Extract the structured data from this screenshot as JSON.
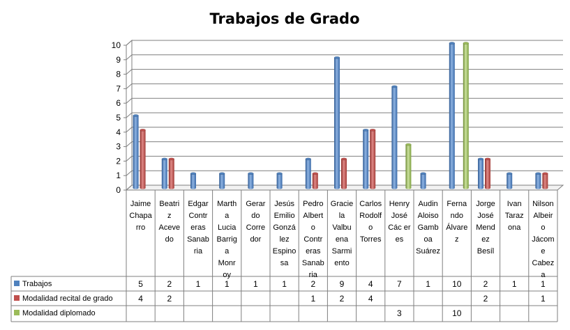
{
  "chart_data": {
    "type": "bar",
    "title": "Trabajos de Grado",
    "ylim": [
      0,
      10
    ],
    "yticks": [
      "0",
      "1",
      "2",
      "3",
      "4",
      "5",
      "6",
      "7",
      "8",
      "9",
      "10"
    ],
    "grid": true,
    "categories": [
      [
        "Jaime",
        "Chapa",
        "rro"
      ],
      [
        "Beatri",
        "z",
        "Aceve",
        "do"
      ],
      [
        "Edgar",
        "Contr",
        "eras",
        "Sanab",
        "ria"
      ],
      [
        "Marth",
        "a",
        "Lucia",
        "Barrig",
        "a",
        "Monr",
        "oy"
      ],
      [
        "Gerar",
        "do",
        "Corre",
        "dor"
      ],
      [
        "Jesús",
        "Emilio",
        "Gonzá",
        "lez",
        "Espino",
        "sa"
      ],
      [
        "Pedro",
        "Albert",
        "o",
        "Contr",
        "eras",
        "Sanab",
        "ria"
      ],
      [
        "Gracie",
        "la",
        "Valbu",
        "ena",
        "Sarmi",
        "ento"
      ],
      [
        "Carlos",
        "Rodolf",
        "o",
        "Torres"
      ],
      [
        "Henry",
        "José",
        "Các er",
        "es"
      ],
      [
        "Audin",
        "Aloiso",
        "Gamb",
        "oa",
        "Suárez"
      ],
      [
        "Ferna",
        "ndo",
        "Álvare",
        "z"
      ],
      [
        "Jorge",
        "José",
        "Mend",
        "ez",
        "Besíl"
      ],
      [
        "Ivan",
        "Taraz",
        "ona"
      ],
      [
        "Nilson",
        "Albeir",
        "o",
        "Jácom",
        "e",
        "Cabez",
        "a"
      ]
    ],
    "series": [
      {
        "name": "Trabajos",
        "color": "#4f81bd",
        "values": [
          5,
          2,
          1,
          1,
          1,
          1,
          2,
          9,
          4,
          7,
          1,
          10,
          2,
          1,
          1
        ]
      },
      {
        "name": "Modalidad recital de grado",
        "color": "#c0504d",
        "values": [
          4,
          2,
          null,
          null,
          null,
          null,
          1,
          2,
          4,
          null,
          null,
          null,
          2,
          null,
          1
        ]
      },
      {
        "name": "Modalidad diplomado",
        "color": "#9bbb59",
        "values": [
          null,
          null,
          null,
          null,
          null,
          null,
          null,
          null,
          null,
          3,
          null,
          10,
          null,
          null,
          null
        ]
      }
    ]
  }
}
